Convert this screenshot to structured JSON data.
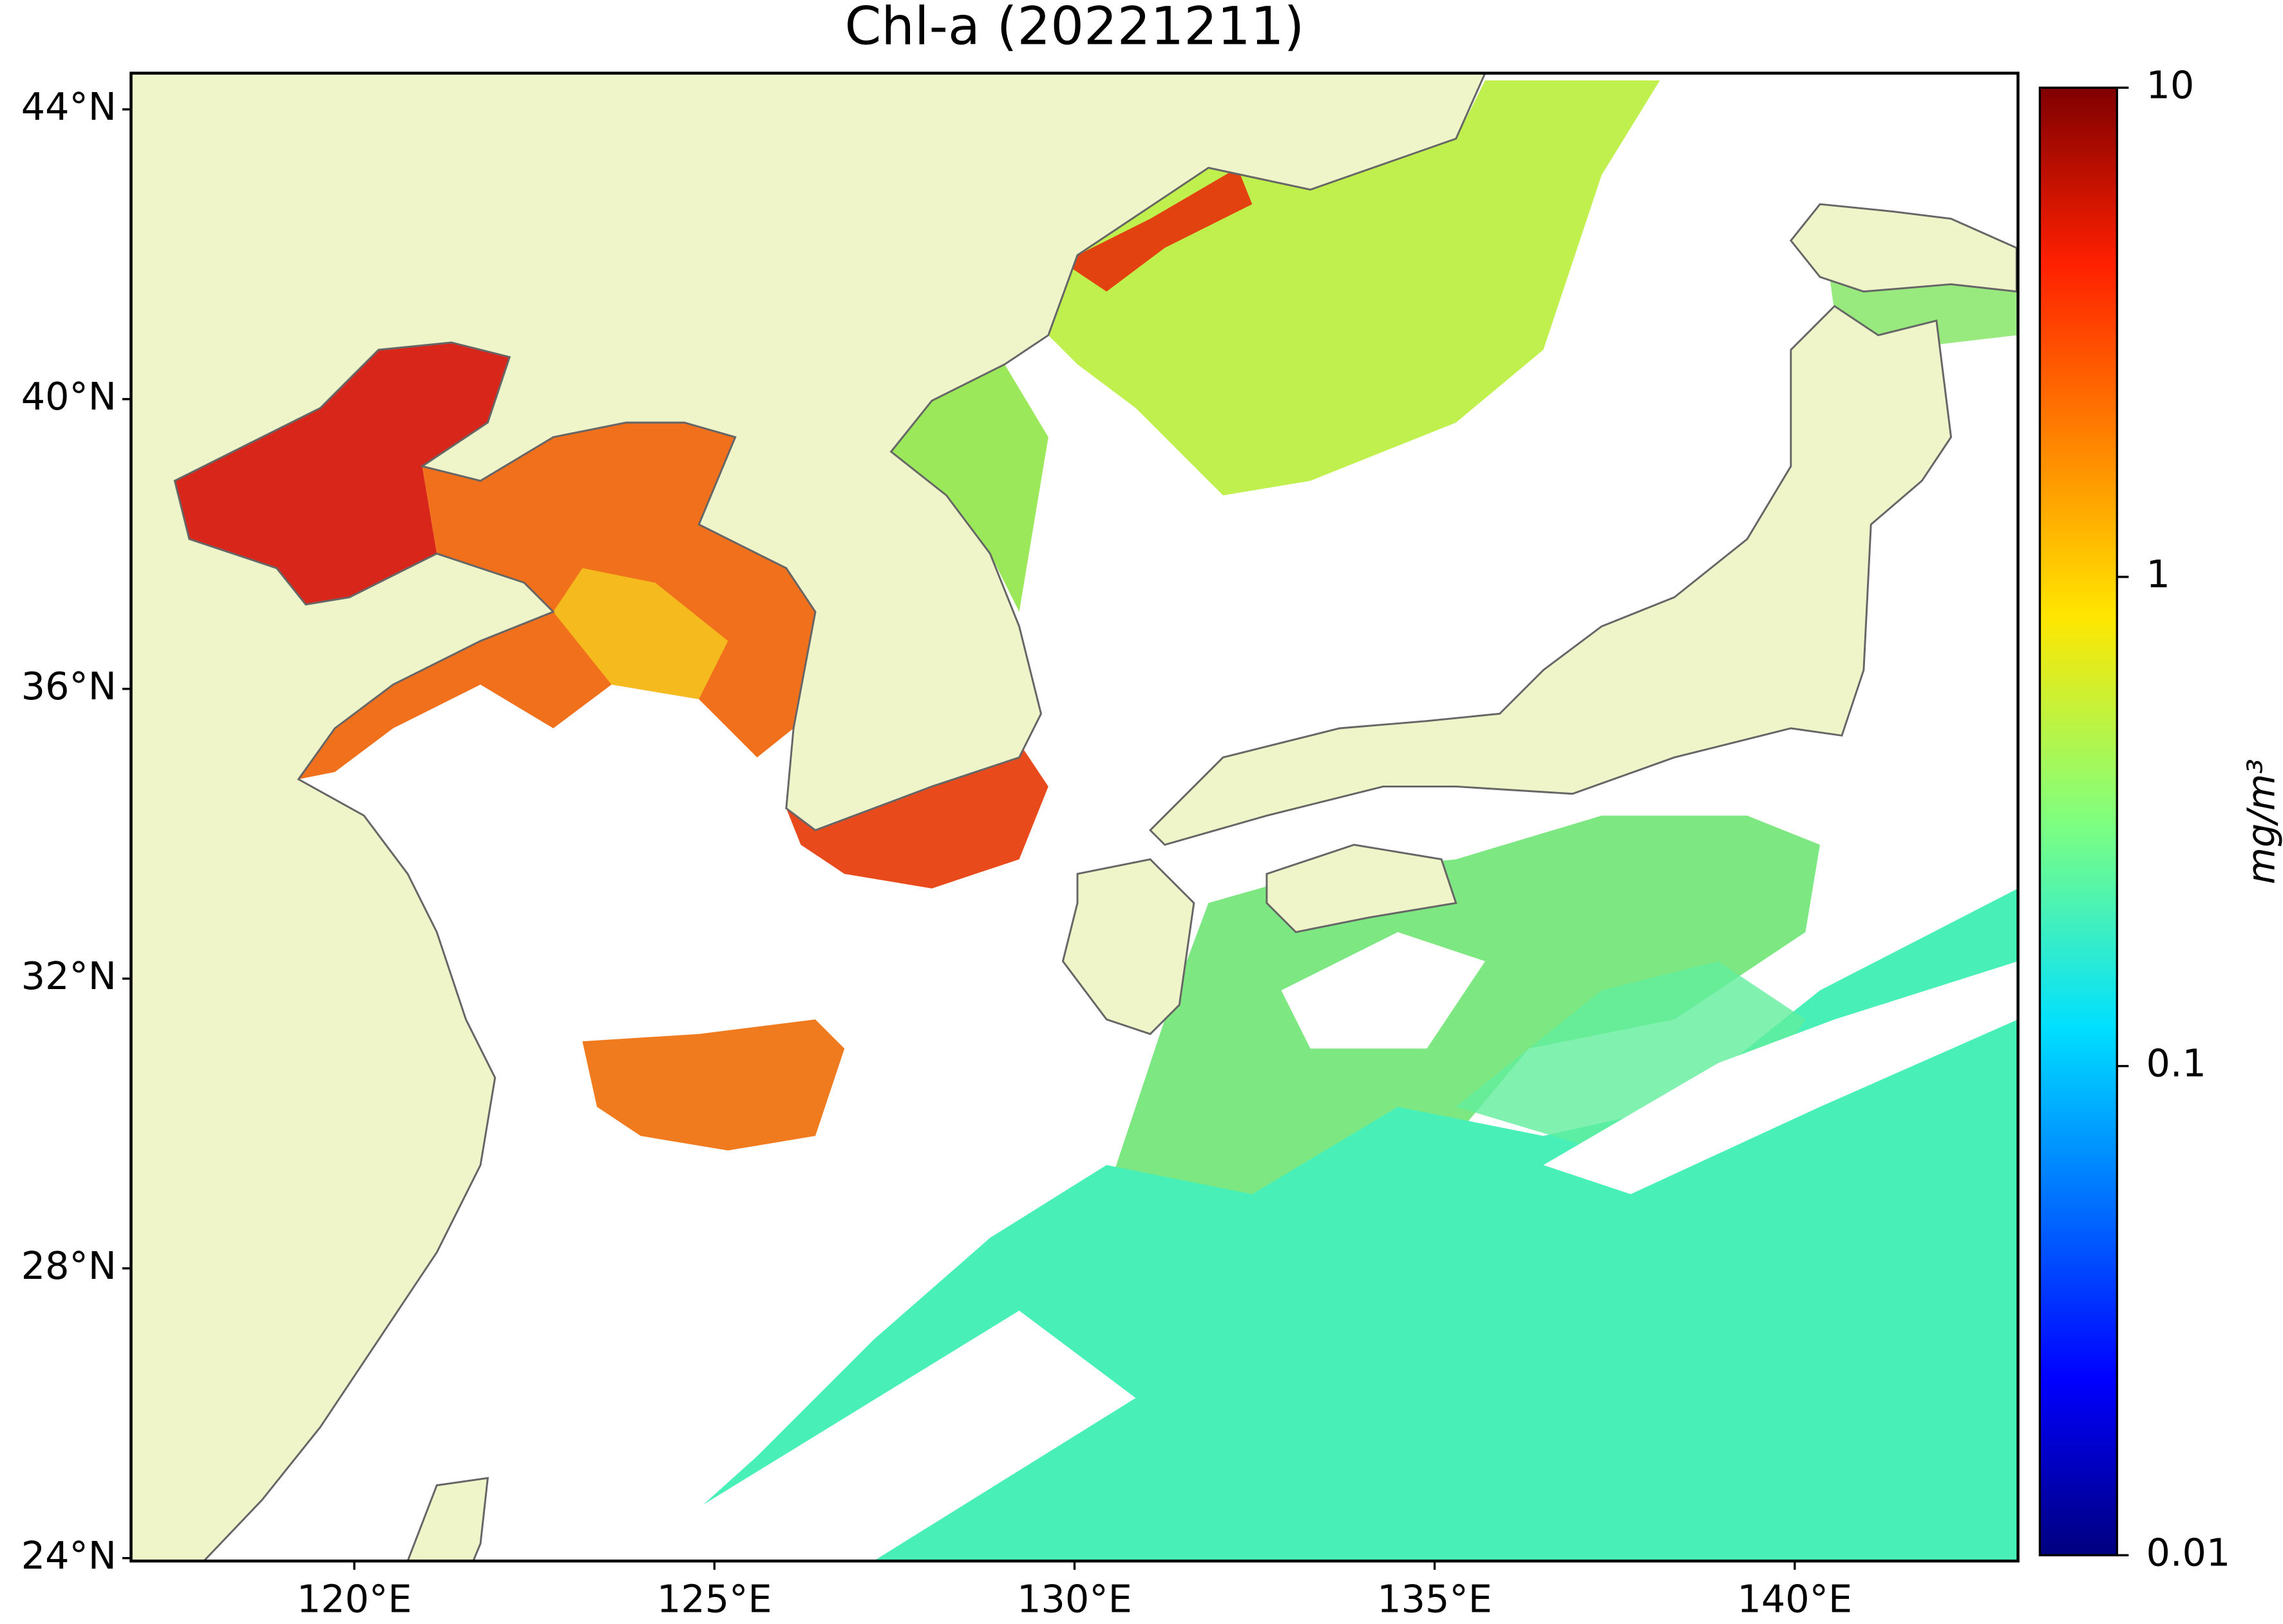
{
  "chart_data": {
    "type": "map",
    "title": "Chl-a (20221211)",
    "xlim": [
      116.9,
      143.1
    ],
    "ylim": [
      23.96,
      44.5
    ],
    "xticks": [
      {
        "value": 120,
        "label": "120°E"
      },
      {
        "value": 125,
        "label": "125°E"
      },
      {
        "value": 130,
        "label": "130°E"
      },
      {
        "value": 135,
        "label": "135°E"
      },
      {
        "value": 140,
        "label": "140°E"
      }
    ],
    "yticks": [
      {
        "value": 24,
        "label": "24°N"
      },
      {
        "value": 28,
        "label": "28°N"
      },
      {
        "value": 32,
        "label": "32°N"
      },
      {
        "value": 36,
        "label": "36°N"
      },
      {
        "value": 40,
        "label": "40°N"
      },
      {
        "value": 44,
        "label": "44°N"
      }
    ],
    "colorbar": {
      "label": "mg/m³",
      "scale": "log",
      "colormap": "jet",
      "lim": [
        0.01,
        10
      ],
      "ticks": [
        0.01,
        0.1,
        1,
        10
      ]
    }
  }
}
